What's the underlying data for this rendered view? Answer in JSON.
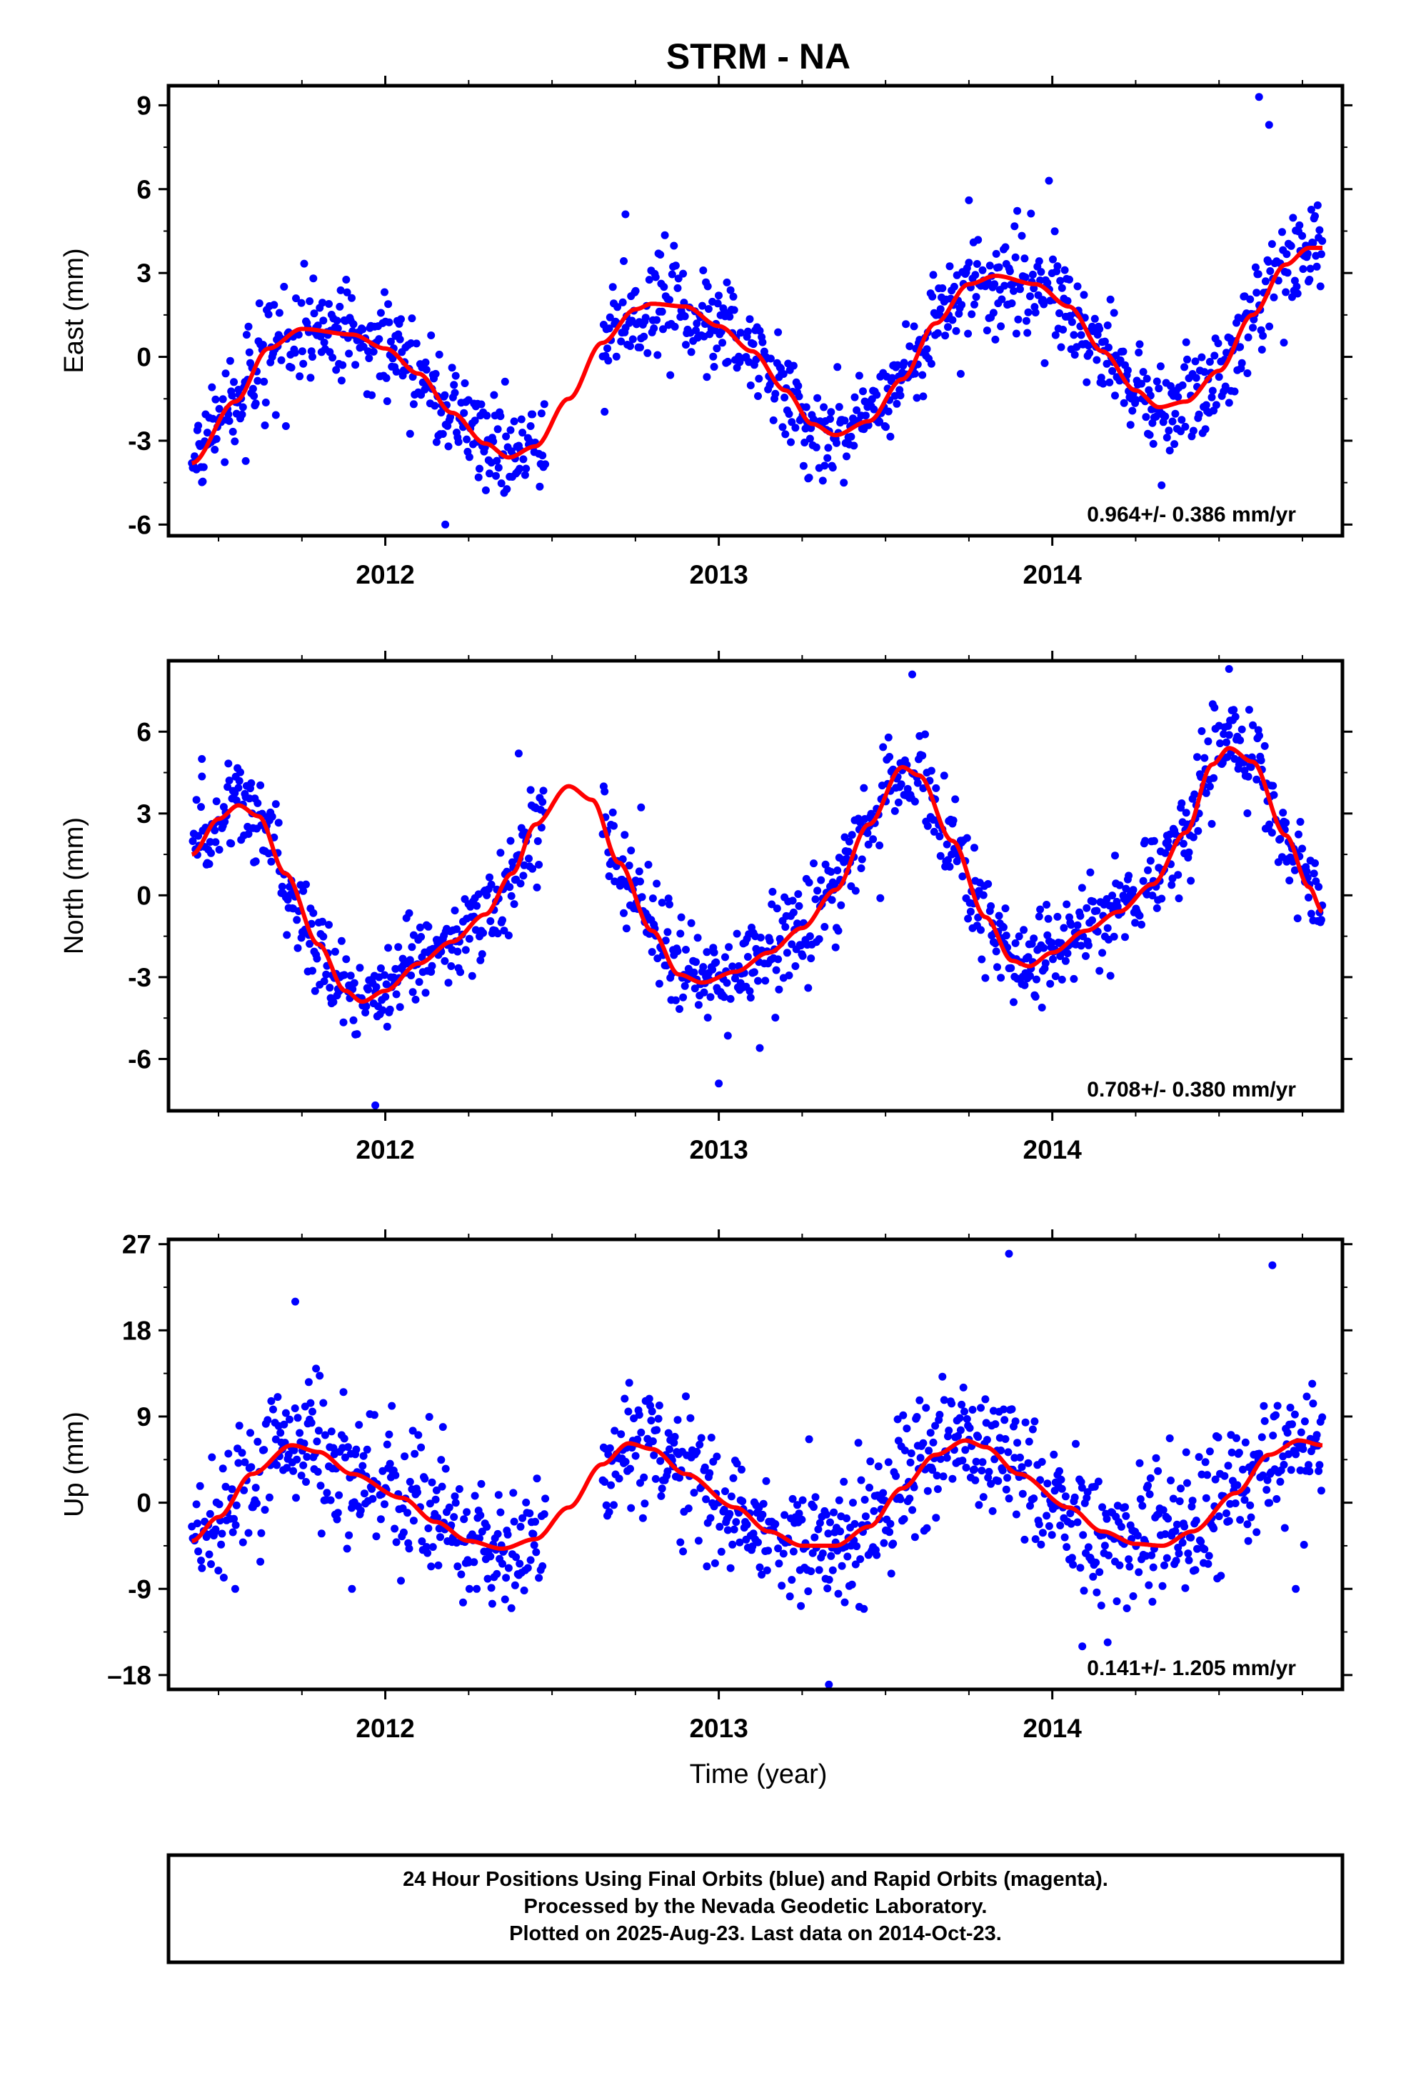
{
  "title": "STRM - NA",
  "xlabel": "Time (year)",
  "footer": [
    "24 Hour Positions Using Final Orbits (blue) and Rapid Orbits (magenta).",
    "Processed by the Nevada Geodetic Laboratory.",
    "Plotted on 2025-Aug-23. Last data on 2014-Oct-23."
  ],
  "colors": {
    "points": "#0000ff",
    "fit": "#ff0000",
    "frame": "#000000"
  },
  "chart_data": [
    {
      "type": "scatter",
      "ylabel": "East (mm)",
      "xlim": [
        2011.35,
        2014.87
      ],
      "ylim": [
        -6.4,
        9.7
      ],
      "yticks": [
        -6,
        -3,
        0,
        3,
        6,
        9
      ],
      "xticks": [
        2012,
        2013,
        2014
      ],
      "rate_label": "0.964+/- 0.386 mm/yr",
      "data_range": [
        2011.42,
        2014.81
      ],
      "gap": [
        2012.48,
        2012.65
      ],
      "fit_knots": [
        [
          2011.42,
          -3.8
        ],
        [
          2011.55,
          -1.6
        ],
        [
          2011.65,
          0.3
        ],
        [
          2011.75,
          1.0
        ],
        [
          2011.9,
          0.8
        ],
        [
          2012.0,
          0.3
        ],
        [
          2012.1,
          -0.6
        ],
        [
          2012.2,
          -2.0
        ],
        [
          2012.3,
          -3.1
        ],
        [
          2012.37,
          -3.6
        ],
        [
          2012.45,
          -3.2
        ],
        [
          2012.55,
          -1.5
        ],
        [
          2012.65,
          0.5
        ],
        [
          2012.75,
          1.7
        ],
        [
          2012.8,
          1.9
        ],
        [
          2012.9,
          1.8
        ],
        [
          2013.0,
          1.1
        ],
        [
          2013.1,
          0.2
        ],
        [
          2013.2,
          -1.2
        ],
        [
          2013.28,
          -2.4
        ],
        [
          2013.35,
          -2.8
        ],
        [
          2013.45,
          -2.3
        ],
        [
          2013.55,
          -0.8
        ],
        [
          2013.65,
          1.2
        ],
        [
          2013.75,
          2.6
        ],
        [
          2013.83,
          2.9
        ],
        [
          2013.95,
          2.6
        ],
        [
          2014.05,
          1.8
        ],
        [
          2014.15,
          0.2
        ],
        [
          2014.25,
          -1.2
        ],
        [
          2014.32,
          -1.8
        ],
        [
          2014.4,
          -1.6
        ],
        [
          2014.5,
          -0.5
        ],
        [
          2014.6,
          1.5
        ],
        [
          2014.7,
          3.3
        ],
        [
          2014.77,
          3.9
        ],
        [
          2014.81,
          3.9
        ]
      ],
      "scatter_sd": 0.9,
      "outliers": [
        [
          2014.62,
          9.3
        ],
        [
          2014.65,
          8.3
        ],
        [
          2013.99,
          6.3
        ],
        [
          2012.18,
          -6.0
        ],
        [
          2012.72,
          5.1
        ],
        [
          2013.75,
          5.6
        ]
      ]
    },
    {
      "type": "scatter",
      "ylabel": "North (mm)",
      "xlim": [
        2011.35,
        2014.87
      ],
      "ylim": [
        -7.9,
        8.6
      ],
      "yticks": [
        -6,
        -3,
        0,
        3,
        6
      ],
      "xticks": [
        2012,
        2013,
        2014
      ],
      "rate_label": "0.708+/- 0.380 mm/yr",
      "data_range": [
        2011.42,
        2014.81
      ],
      "gap": [
        2012.48,
        2012.65
      ],
      "fit_knots": [
        [
          2011.42,
          1.5
        ],
        [
          2011.5,
          2.8
        ],
        [
          2011.56,
          3.3
        ],
        [
          2011.62,
          2.9
        ],
        [
          2011.7,
          0.8
        ],
        [
          2011.8,
          -1.8
        ],
        [
          2011.88,
          -3.5
        ],
        [
          2011.93,
          -3.9
        ],
        [
          2012.0,
          -3.5
        ],
        [
          2012.1,
          -2.5
        ],
        [
          2012.2,
          -1.7
        ],
        [
          2012.3,
          -0.7
        ],
        [
          2012.38,
          0.8
        ],
        [
          2012.45,
          2.6
        ],
        [
          2012.55,
          4.0
        ],
        [
          2012.62,
          3.5
        ],
        [
          2012.7,
          1.2
        ],
        [
          2012.8,
          -1.3
        ],
        [
          2012.88,
          -2.9
        ],
        [
          2012.95,
          -3.2
        ],
        [
          2013.05,
          -2.8
        ],
        [
          2013.15,
          -2.1
        ],
        [
          2013.25,
          -1.2
        ],
        [
          2013.35,
          0.2
        ],
        [
          2013.45,
          2.6
        ],
        [
          2013.55,
          4.7
        ],
        [
          2013.6,
          4.4
        ],
        [
          2013.7,
          2.0
        ],
        [
          2013.8,
          -0.8
        ],
        [
          2013.88,
          -2.4
        ],
        [
          2013.93,
          -2.6
        ],
        [
          2014.0,
          -2.1
        ],
        [
          2014.1,
          -1.3
        ],
        [
          2014.2,
          -0.6
        ],
        [
          2014.3,
          0.4
        ],
        [
          2014.4,
          2.3
        ],
        [
          2014.48,
          4.8
        ],
        [
          2014.53,
          5.4
        ],
        [
          2014.6,
          4.9
        ],
        [
          2014.7,
          2.2
        ],
        [
          2014.77,
          0.3
        ],
        [
          2014.81,
          -0.6
        ]
      ],
      "scatter_sd": 0.85,
      "outliers": [
        [
          2014.53,
          8.3
        ],
        [
          2013.58,
          8.1
        ],
        [
          2011.97,
          -7.7
        ],
        [
          2013.0,
          -6.9
        ],
        [
          2012.4,
          5.2
        ],
        [
          2011.45,
          5.0
        ]
      ]
    },
    {
      "type": "scatter",
      "ylabel": "Up (mm)",
      "xlim": [
        2011.35,
        2014.87
      ],
      "ylim": [
        -19.5,
        27.5
      ],
      "yticks": [
        -18,
        -9,
        0,
        9,
        18,
        27
      ],
      "ytick_labels": [
        "–18",
        "-9",
        "0",
        "9",
        "18",
        "27"
      ],
      "xticks": [
        2012,
        2013,
        2014
      ],
      "rate_label": "0.141+/- 1.205 mm/yr",
      "data_range": [
        2011.42,
        2014.81
      ],
      "gap": [
        2012.48,
        2012.65
      ],
      "fit_knots": [
        [
          2011.42,
          -4.0
        ],
        [
          2011.5,
          -1.5
        ],
        [
          2011.6,
          3.0
        ],
        [
          2011.72,
          6.0
        ],
        [
          2011.8,
          5.3
        ],
        [
          2011.9,
          3.0
        ],
        [
          2012.05,
          0.5
        ],
        [
          2012.15,
          -2.0
        ],
        [
          2012.25,
          -4.0
        ],
        [
          2012.35,
          -4.8
        ],
        [
          2012.45,
          -3.8
        ],
        [
          2012.55,
          -0.5
        ],
        [
          2012.65,
          4.0
        ],
        [
          2012.73,
          6.2
        ],
        [
          2012.8,
          5.6
        ],
        [
          2012.9,
          3.0
        ],
        [
          2013.05,
          -0.5
        ],
        [
          2013.15,
          -3.0
        ],
        [
          2013.25,
          -4.5
        ],
        [
          2013.35,
          -4.5
        ],
        [
          2013.45,
          -2.5
        ],
        [
          2013.55,
          1.5
        ],
        [
          2013.65,
          5.0
        ],
        [
          2013.74,
          6.5
        ],
        [
          2013.8,
          5.8
        ],
        [
          2013.9,
          3.0
        ],
        [
          2014.05,
          -0.5
        ],
        [
          2014.15,
          -3.0
        ],
        [
          2014.25,
          -4.3
        ],
        [
          2014.33,
          -4.5
        ],
        [
          2014.42,
          -3.0
        ],
        [
          2014.55,
          1.0
        ],
        [
          2014.65,
          5.0
        ],
        [
          2014.74,
          6.5
        ],
        [
          2014.81,
          6.0
        ]
      ],
      "scatter_sd": 3.5,
      "outliers": [
        [
          2013.87,
          26.0
        ],
        [
          2014.66,
          24.8
        ],
        [
          2011.73,
          21.0
        ],
        [
          2013.33,
          -19.0
        ],
        [
          2014.09,
          -15.0
        ],
        [
          2011.9,
          -9.0
        ],
        [
          2014.73,
          -9.0
        ],
        [
          2011.55,
          -9.0
        ]
      ]
    }
  ]
}
